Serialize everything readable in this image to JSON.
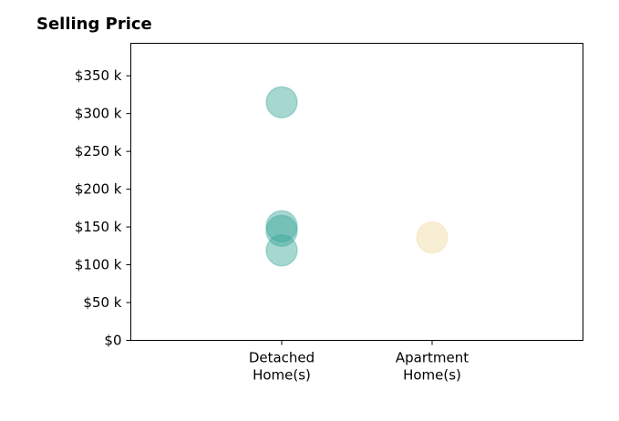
{
  "chart_data": {
    "type": "scatter",
    "title": "Selling Price",
    "xlabel": "",
    "ylabel": "",
    "categories": [
      "Detached\nHome(s)",
      "Apartment\nHome(s)"
    ],
    "ylim": [
      0,
      393000
    ],
    "yticks": [
      0,
      50000,
      100000,
      150000,
      200000,
      250000,
      300000,
      350000
    ],
    "ytick_labels": [
      "$0",
      "$50 k",
      "$100 k",
      "$150 k",
      "$200 k",
      "$250 k",
      "$300 k",
      "$350 k"
    ],
    "grid": false,
    "series": [
      {
        "category": "Detached\nHome(s)",
        "color": "#3aa698",
        "values": [
          315000,
          151000,
          145000,
          119000
        ]
      },
      {
        "category": "Apartment\nHome(s)",
        "color": "#f0d9a0",
        "values": [
          136000
        ]
      }
    ]
  }
}
